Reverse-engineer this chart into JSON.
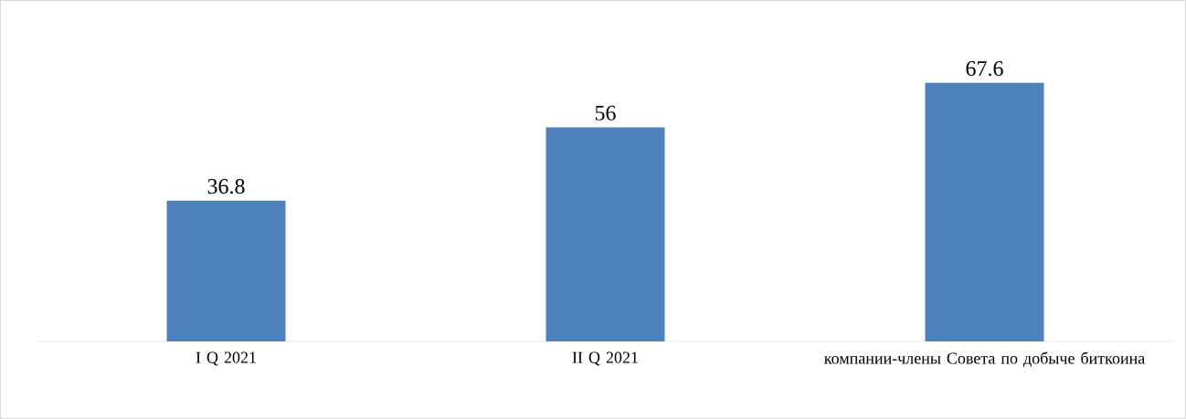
{
  "chart_data": {
    "type": "bar",
    "categories": [
      "I Q 2021",
      "II Q 2021",
      "компании-члены Совета по добыче биткоина"
    ],
    "values": [
      36.8,
      56,
      67.6
    ],
    "color": "#4f81bd",
    "data_labels": true
  }
}
